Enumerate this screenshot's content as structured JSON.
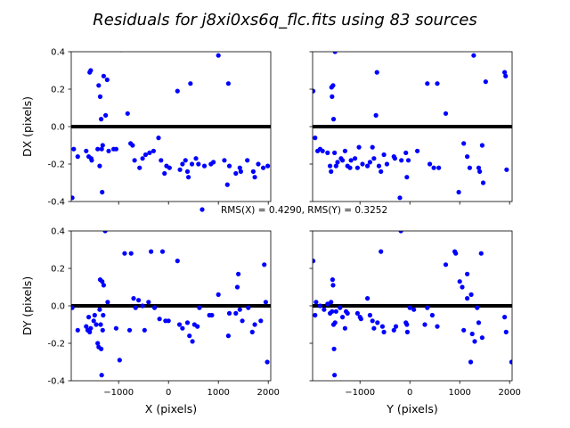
{
  "chart_data": {
    "type": "scatter",
    "title": "Residuals for j8xi0xs6q_flc.fits using 83 sources",
    "legend": "RMS(X) = 0.4290, RMS(Y) = 0.3252",
    "legend_location": "center",
    "marker_color": "#0000ff",
    "zero_line_color": "#000000",
    "xlim": [
      -1950,
      2050
    ],
    "ylim": [
      -0.4,
      0.4
    ],
    "xticks": [
      -1000,
      0,
      1000,
      2000
    ],
    "yticks": [
      -0.4,
      -0.2,
      0.0,
      0.2,
      0.4
    ],
    "subplots": [
      {
        "id": "dx-vs-x",
        "xlabel": "",
        "ylabel": "DX (pixels)",
        "show_xticklabels": false,
        "show_yticklabels": true,
        "points": [
          [
            -1930,
            -0.38
          ],
          [
            -1900,
            -0.12
          ],
          [
            -1820,
            -0.16
          ],
          [
            -1650,
            -0.13
          ],
          [
            -1600,
            -0.16
          ],
          [
            -1580,
            0.29
          ],
          [
            -1560,
            0.3
          ],
          [
            -1550,
            -0.17
          ],
          [
            -1540,
            -0.18
          ],
          [
            -1420,
            -0.12
          ],
          [
            -1400,
            0.22
          ],
          [
            -1380,
            -0.21
          ],
          [
            -1370,
            0.16
          ],
          [
            -1350,
            0.04
          ],
          [
            -1340,
            -0.12
          ],
          [
            -1330,
            -0.35
          ],
          [
            -1320,
            -0.1
          ],
          [
            -1300,
            0.27
          ],
          [
            -1260,
            0.06
          ],
          [
            -1230,
            0.25
          ],
          [
            -1200,
            -0.13
          ],
          [
            -1100,
            -0.12
          ],
          [
            -1050,
            -0.12
          ],
          [
            -950,
            0.41
          ],
          [
            -820,
            0.07
          ],
          [
            -760,
            -0.09
          ],
          [
            -720,
            -0.1
          ],
          [
            -680,
            -0.18
          ],
          [
            -580,
            -0.22
          ],
          [
            -520,
            -0.17
          ],
          [
            -460,
            -0.15
          ],
          [
            -380,
            -0.14
          ],
          [
            -300,
            -0.13
          ],
          [
            -200,
            -0.06
          ],
          [
            -150,
            -0.18
          ],
          [
            -80,
            -0.25
          ],
          [
            -40,
            -0.21
          ],
          [
            20,
            -0.22
          ],
          [
            180,
            0.19
          ],
          [
            230,
            -0.23
          ],
          [
            280,
            -0.2
          ],
          [
            340,
            -0.18
          ],
          [
            380,
            -0.24
          ],
          [
            400,
            -0.27
          ],
          [
            440,
            0.23
          ],
          [
            470,
            -0.2
          ],
          [
            550,
            -0.17
          ],
          [
            600,
            -0.2
          ],
          [
            720,
            -0.21
          ],
          [
            850,
            -0.2
          ],
          [
            900,
            -0.19
          ],
          [
            1000,
            0.38
          ],
          [
            1120,
            -0.18
          ],
          [
            1180,
            -0.31
          ],
          [
            1200,
            0.23
          ],
          [
            1220,
            -0.21
          ],
          [
            1350,
            -0.25
          ],
          [
            1430,
            -0.22
          ],
          [
            1450,
            -0.24
          ],
          [
            1580,
            -0.18
          ],
          [
            1700,
            -0.24
          ],
          [
            1730,
            -0.27
          ],
          [
            1800,
            -0.2
          ],
          [
            1900,
            -0.22
          ],
          [
            1990,
            -0.21
          ]
        ]
      },
      {
        "id": "dx-vs-y",
        "xlabel": "",
        "ylabel": "",
        "show_xticklabels": false,
        "show_yticklabels": false,
        "points": [
          [
            -1940,
            0.19
          ],
          [
            -1900,
            -0.06
          ],
          [
            -1850,
            -0.13
          ],
          [
            -1800,
            -0.12
          ],
          [
            -1750,
            -0.13
          ],
          [
            -1650,
            -0.14
          ],
          [
            -1600,
            -0.21
          ],
          [
            -1580,
            -0.24
          ],
          [
            -1570,
            0.21
          ],
          [
            -1560,
            0.16
          ],
          [
            -1540,
            0.22
          ],
          [
            -1530,
            0.04
          ],
          [
            -1510,
            -0.14
          ],
          [
            -1500,
            0.4
          ],
          [
            -1480,
            -0.21
          ],
          [
            -1450,
            -0.19
          ],
          [
            -1380,
            -0.17
          ],
          [
            -1350,
            -0.18
          ],
          [
            -1300,
            -0.13
          ],
          [
            -1250,
            -0.21
          ],
          [
            -1200,
            -0.22
          ],
          [
            -1180,
            -0.18
          ],
          [
            -1100,
            -0.17
          ],
          [
            -1050,
            -0.22
          ],
          [
            -1020,
            -0.11
          ],
          [
            -950,
            -0.2
          ],
          [
            -850,
            -0.21
          ],
          [
            -800,
            -0.19
          ],
          [
            -750,
            -0.11
          ],
          [
            -720,
            -0.17
          ],
          [
            -680,
            0.06
          ],
          [
            -660,
            0.29
          ],
          [
            -620,
            -0.21
          ],
          [
            -580,
            -0.24
          ],
          [
            -520,
            -0.15
          ],
          [
            -460,
            -0.2
          ],
          [
            -320,
            -0.16
          ],
          [
            -300,
            -0.17
          ],
          [
            -200,
            -0.38
          ],
          [
            -170,
            -0.18
          ],
          [
            -80,
            -0.14
          ],
          [
            -60,
            -0.27
          ],
          [
            -30,
            -0.18
          ],
          [
            150,
            -0.13
          ],
          [
            350,
            0.23
          ],
          [
            400,
            -0.2
          ],
          [
            480,
            -0.22
          ],
          [
            550,
            0.23
          ],
          [
            580,
            -0.22
          ],
          [
            720,
            0.07
          ],
          [
            980,
            -0.35
          ],
          [
            1080,
            -0.09
          ],
          [
            1150,
            -0.16
          ],
          [
            1200,
            -0.22
          ],
          [
            1280,
            0.38
          ],
          [
            1380,
            -0.22
          ],
          [
            1400,
            -0.24
          ],
          [
            1450,
            -0.1
          ],
          [
            1470,
            -0.3
          ],
          [
            1520,
            0.24
          ],
          [
            1900,
            0.29
          ],
          [
            1920,
            0.27
          ],
          [
            1940,
            -0.23
          ]
        ]
      },
      {
        "id": "dy-vs-x",
        "xlabel": "X (pixels)",
        "ylabel": "DY (pixels)",
        "show_xticklabels": true,
        "show_yticklabels": true,
        "points": [
          [
            -1930,
            -0.01
          ],
          [
            -1820,
            -0.13
          ],
          [
            -1650,
            -0.11
          ],
          [
            -1620,
            -0.13
          ],
          [
            -1600,
            -0.06
          ],
          [
            -1580,
            -0.14
          ],
          [
            -1560,
            -0.12
          ],
          [
            -1500,
            -0.08
          ],
          [
            -1480,
            -0.05
          ],
          [
            -1450,
            -0.1
          ],
          [
            -1420,
            -0.2
          ],
          [
            -1400,
            -0.22
          ],
          [
            -1380,
            -0.02
          ],
          [
            -1370,
            0.14
          ],
          [
            -1360,
            -0.1
          ],
          [
            -1350,
            -0.23
          ],
          [
            -1340,
            -0.37
          ],
          [
            -1330,
            0.13
          ],
          [
            -1320,
            -0.13
          ],
          [
            -1310,
            -0.05
          ],
          [
            -1300,
            0.11
          ],
          [
            -1270,
            0.4
          ],
          [
            -1220,
            0.02
          ],
          [
            -1050,
            -0.12
          ],
          [
            -980,
            -0.29
          ],
          [
            -880,
            0.28
          ],
          [
            -780,
            -0.13
          ],
          [
            -750,
            0.28
          ],
          [
            -700,
            0.04
          ],
          [
            -660,
            -0.01
          ],
          [
            -600,
            0.03
          ],
          [
            -520,
            0.0
          ],
          [
            -480,
            -0.13
          ],
          [
            -400,
            0.02
          ],
          [
            -350,
            0.29
          ],
          [
            -280,
            -0.01
          ],
          [
            -180,
            -0.07
          ],
          [
            -120,
            0.29
          ],
          [
            -60,
            -0.08
          ],
          [
            0,
            -0.08
          ],
          [
            180,
            0.24
          ],
          [
            220,
            -0.1
          ],
          [
            280,
            -0.12
          ],
          [
            380,
            -0.09
          ],
          [
            420,
            -0.16
          ],
          [
            480,
            -0.19
          ],
          [
            520,
            -0.1
          ],
          [
            580,
            -0.11
          ],
          [
            620,
            -0.01
          ],
          [
            820,
            -0.05
          ],
          [
            870,
            -0.05
          ],
          [
            1000,
            0.06
          ],
          [
            1200,
            -0.16
          ],
          [
            1220,
            -0.04
          ],
          [
            1350,
            -0.04
          ],
          [
            1380,
            0.1
          ],
          [
            1400,
            0.17
          ],
          [
            1430,
            -0.02
          ],
          [
            1480,
            -0.08
          ],
          [
            1600,
            -0.01
          ],
          [
            1680,
            -0.14
          ],
          [
            1730,
            -0.1
          ],
          [
            1850,
            -0.08
          ],
          [
            1920,
            0.22
          ],
          [
            1950,
            0.02
          ],
          [
            1980,
            -0.3
          ]
        ]
      },
      {
        "id": "dy-vs-y",
        "xlabel": "Y (pixels)",
        "ylabel": "",
        "show_xticklabels": true,
        "show_yticklabels": false,
        "points": [
          [
            -1940,
            0.24
          ],
          [
            -1900,
            -0.05
          ],
          [
            -1880,
            0.02
          ],
          [
            -1800,
            0.0
          ],
          [
            -1720,
            -0.02
          ],
          [
            -1650,
            0.01
          ],
          [
            -1600,
            -0.04
          ],
          [
            -1580,
            0.02
          ],
          [
            -1560,
            -0.03
          ],
          [
            -1550,
            0.14
          ],
          [
            -1540,
            0.11
          ],
          [
            -1530,
            -0.1
          ],
          [
            -1520,
            -0.23
          ],
          [
            -1510,
            -0.37
          ],
          [
            -1500,
            -0.09
          ],
          [
            -1480,
            -0.03
          ],
          [
            -1400,
            -0.01
          ],
          [
            -1350,
            -0.06
          ],
          [
            -1300,
            -0.12
          ],
          [
            -1280,
            -0.03
          ],
          [
            -1250,
            -0.04
          ],
          [
            -1050,
            -0.04
          ],
          [
            -1000,
            -0.06
          ],
          [
            -980,
            -0.07
          ],
          [
            -850,
            0.04
          ],
          [
            -800,
            -0.05
          ],
          [
            -750,
            -0.08
          ],
          [
            -720,
            -0.12
          ],
          [
            -650,
            -0.09
          ],
          [
            -580,
            0.29
          ],
          [
            -550,
            -0.11
          ],
          [
            -520,
            -0.14
          ],
          [
            -320,
            -0.13
          ],
          [
            -280,
            -0.11
          ],
          [
            -180,
            0.4
          ],
          [
            -80,
            -0.09
          ],
          [
            -60,
            -0.1
          ],
          [
            -50,
            -0.14
          ],
          [
            0,
            -0.01
          ],
          [
            80,
            -0.02
          ],
          [
            300,
            -0.1
          ],
          [
            350,
            -0.01
          ],
          [
            450,
            -0.05
          ],
          [
            550,
            -0.11
          ],
          [
            720,
            0.22
          ],
          [
            900,
            0.29
          ],
          [
            920,
            0.28
          ],
          [
            1000,
            0.13
          ],
          [
            1050,
            0.1
          ],
          [
            1080,
            -0.13
          ],
          [
            1150,
            0.17
          ],
          [
            1150,
            0.04
          ],
          [
            1220,
            -0.3
          ],
          [
            1230,
            0.06
          ],
          [
            1250,
            -0.15
          ],
          [
            1300,
            -0.19
          ],
          [
            1350,
            -0.01
          ],
          [
            1380,
            -0.09
          ],
          [
            1430,
            0.28
          ],
          [
            1450,
            -0.17
          ],
          [
            1900,
            -0.06
          ],
          [
            1930,
            -0.14
          ],
          [
            2040,
            -0.3
          ]
        ]
      }
    ]
  }
}
